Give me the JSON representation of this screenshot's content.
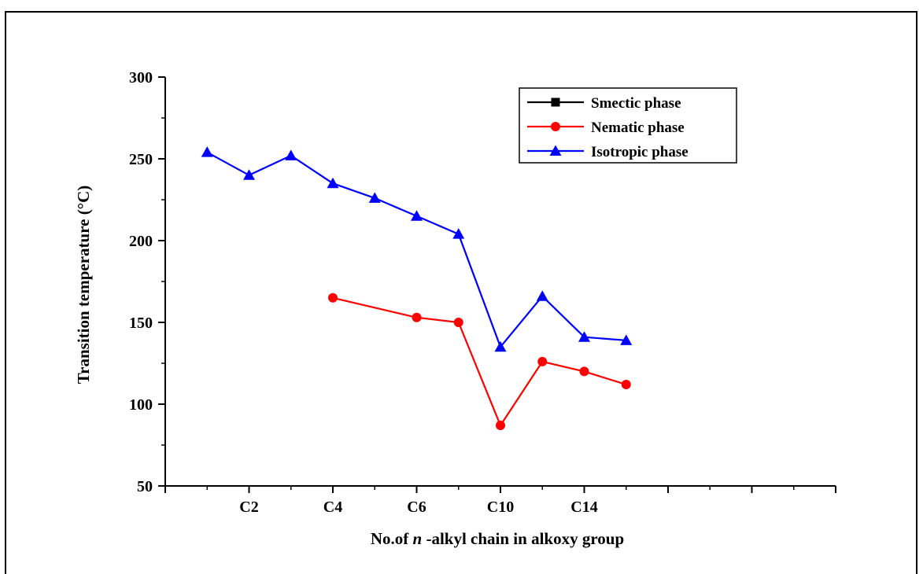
{
  "chart_data": {
    "type": "line",
    "xlabel_prefix": "No.of ",
    "xlabel_italic": "n",
    "xlabel_suffix": " -alkyl chain in alkoxy group",
    "ylabel": "Transition temperature (°C)",
    "xlim": [
      0,
      16
    ],
    "ylim": [
      50,
      300
    ],
    "x_ticks": [
      0,
      2,
      4,
      6,
      8,
      10,
      12,
      14,
      16
    ],
    "x_tick_labels": [
      {
        "x": 2,
        "label": "C2"
      },
      {
        "x": 4,
        "label": "C4"
      },
      {
        "x": 6,
        "label": "C6"
      },
      {
        "x": 8,
        "label": "C10"
      },
      {
        "x": 10,
        "label": "C14"
      }
    ],
    "y_ticks": [
      50,
      100,
      150,
      200,
      250,
      300
    ],
    "y_tick_labels": [
      "50",
      "100",
      "150",
      "200",
      "250",
      "300"
    ],
    "legend_position": "top-right",
    "grid": false,
    "series": [
      {
        "name": "Smectic phase",
        "color": "#000000",
        "marker": "square",
        "x": [],
        "y": []
      },
      {
        "name": "Nematic phase",
        "color": "#ff0000",
        "marker": "circle",
        "x": [
          4,
          6,
          7,
          8,
          9,
          10,
          11
        ],
        "y": [
          165,
          153,
          150,
          87,
          126,
          120,
          112
        ]
      },
      {
        "name": "Isotropic phase",
        "color": "#0000ff",
        "marker": "triangle",
        "x": [
          1,
          2,
          3,
          4,
          5,
          6,
          7,
          8,
          9,
          10,
          11
        ],
        "y": [
          254,
          240,
          252,
          235,
          226,
          215,
          204,
          135,
          166,
          141,
          139
        ]
      }
    ]
  }
}
